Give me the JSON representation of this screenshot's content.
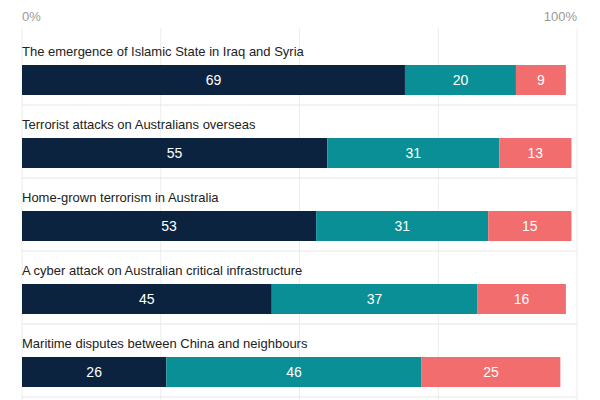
{
  "chart_data": {
    "type": "bar",
    "orientation": "horizontal",
    "stacked": true,
    "data_labels": true,
    "grid": true,
    "categories": [
      "The emergence of Islamic State in Iraq and Syria",
      "Terrorist attacks on Australians overseas",
      "Home-grown terrorism in Australia",
      "A cyber attack on Australian critical infrastructure",
      "Maritime disputes between China and neighbours"
    ],
    "series": [
      {
        "color": "#0c2340",
        "values": [
          69,
          55,
          53,
          45,
          26
        ]
      },
      {
        "color": "#0a8f96",
        "values": [
          20,
          31,
          31,
          37,
          46
        ]
      },
      {
        "color": "#f26e6e",
        "values": [
          9,
          13,
          15,
          16,
          25
        ]
      }
    ],
    "xlim": [
      0,
      100
    ],
    "xticks": [
      {
        "value": 0,
        "label": "0%"
      },
      {
        "value": 25,
        "label": null
      },
      {
        "value": 50,
        "label": null
      },
      {
        "value": 75,
        "label": null
      },
      {
        "value": 100,
        "label": "100%"
      }
    ]
  }
}
